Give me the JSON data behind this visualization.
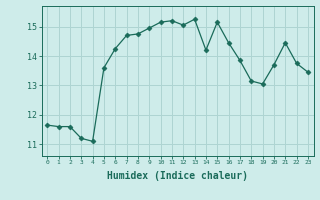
{
  "x": [
    0,
    1,
    2,
    3,
    4,
    5,
    6,
    7,
    8,
    9,
    10,
    11,
    12,
    13,
    14,
    15,
    16,
    17,
    18,
    19,
    20,
    21,
    22,
    23
  ],
  "y": [
    11.65,
    11.6,
    11.6,
    11.2,
    11.1,
    13.6,
    14.25,
    14.7,
    14.75,
    14.95,
    15.15,
    15.2,
    15.05,
    15.25,
    14.2,
    15.15,
    14.45,
    13.85,
    13.15,
    13.05,
    13.7,
    14.45,
    13.75,
    13.45
  ],
  "line_color": "#1a6b5a",
  "marker": "D",
  "marker_size": 2.5,
  "bg_color": "#ceecea",
  "grid_color": "#aed4d2",
  "tick_color": "#1a6b5a",
  "xlabel": "Humidex (Indice chaleur)",
  "xlabel_fontsize": 7,
  "ylabel_ticks": [
    11,
    12,
    13,
    14,
    15
  ],
  "xlim": [
    -0.5,
    23.5
  ],
  "ylim": [
    10.6,
    15.7
  ]
}
